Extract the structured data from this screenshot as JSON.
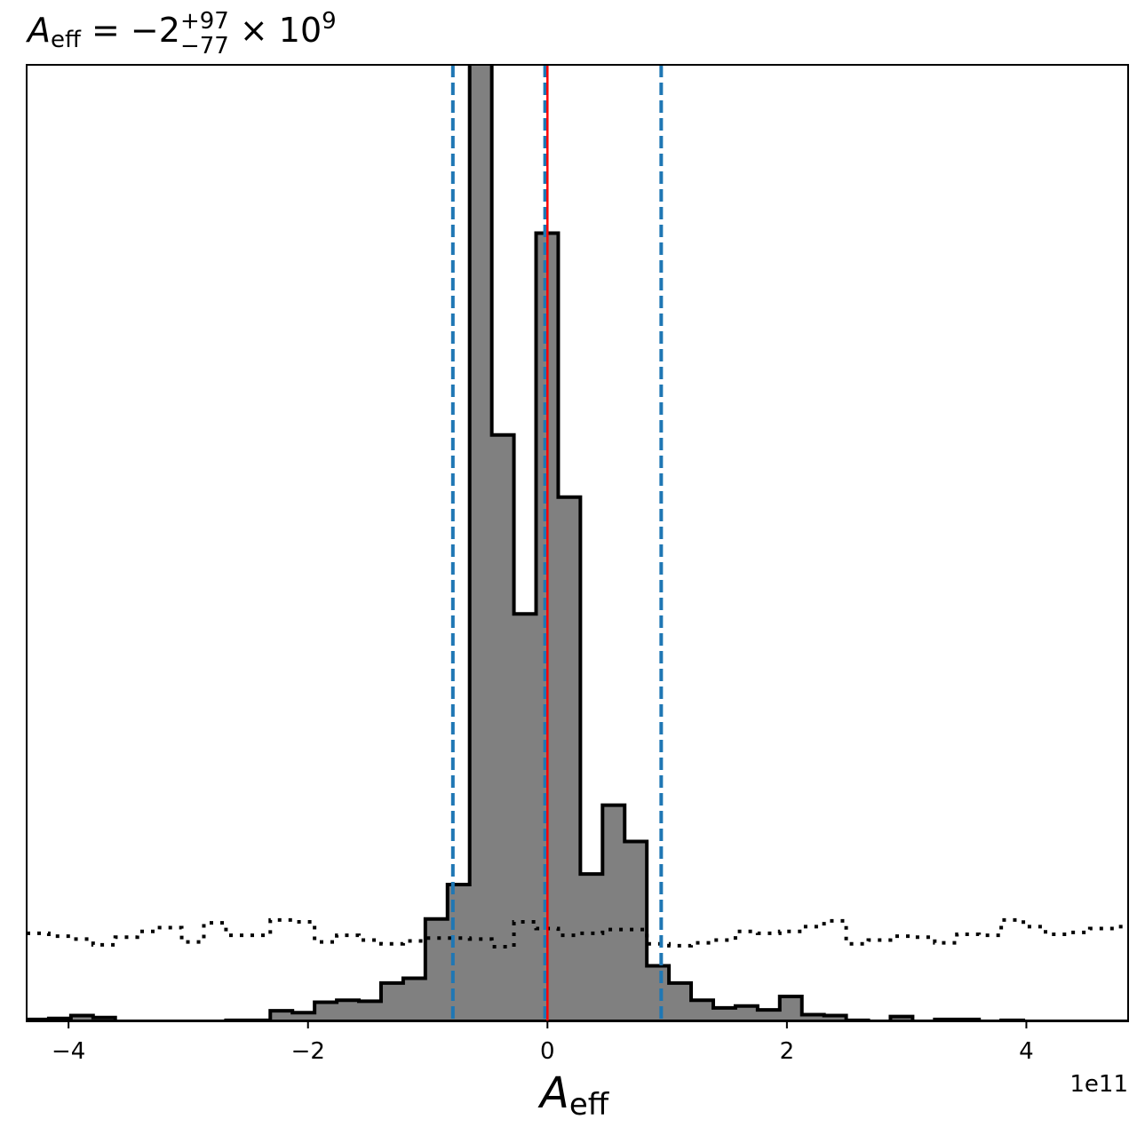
{
  "chart_data": {
    "type": "histogram",
    "title": {
      "symbol": "A",
      "subscript": "eff",
      "equals": " = −2",
      "sup": "+97",
      "sub": "−77",
      "times": " × 10",
      "exponent": "9"
    },
    "xlabel": {
      "symbol": "A",
      "subscript": "eff"
    },
    "ylabel": "",
    "xlim": [
      -4.35,
      4.85
    ],
    "ylim": [
      0,
      100
    ],
    "offset_text": "1e11",
    "x_ticks": [
      -4,
      -2,
      0,
      2,
      4
    ],
    "x_tick_labels": [
      "−4",
      "−2",
      "0",
      "2",
      "4"
    ],
    "histogram": {
      "color": "#808080",
      "edge_color": "#000000",
      "bin_start": -4.35,
      "bin_width": 0.185,
      "values": [
        0.2,
        0.3,
        0.6,
        0.4,
        0,
        0,
        0,
        0,
        0,
        0.1,
        0.1,
        1.1,
        0.9,
        2,
        2.2,
        2.1,
        4,
        4.5,
        10.7,
        14.3,
        107,
        61.3,
        42.6,
        82.4,
        54.8,
        15.4,
        22.6,
        18.8,
        5.8,
        4,
        2.2,
        1.4,
        1.6,
        1.2,
        2.6,
        0.7,
        0.6,
        0.1,
        0,
        0.5,
        0,
        0.2,
        0.2,
        0,
        0.1,
        0,
        0,
        0,
        0,
        0
      ]
    },
    "prior": {
      "style": "dotted",
      "bin_start": -4.35,
      "bin_width": 0.185,
      "values": [
        9.2,
        8.9,
        8.6,
        8,
        8.8,
        9.4,
        9.8,
        8.3,
        10.3,
        9,
        9,
        10.6,
        10.4,
        8.3,
        9,
        8.5,
        8.1,
        8.4,
        8.7,
        8.7,
        8.6,
        7.8,
        10.4,
        9.7,
        9,
        9.2,
        9.6,
        9.6,
        8.1,
        7.9,
        8.2,
        8.5,
        9.4,
        9.2,
        9.4,
        9.9,
        10.5,
        8.1,
        8.5,
        8.9,
        8.8,
        8.2,
        9.1,
        9,
        10.6,
        9.9,
        9.1,
        9.3,
        9.7,
        9.9
      ]
    },
    "vlines": [
      {
        "x": -0.79,
        "color": "#1f77b4",
        "style": "dashed",
        "role": "lower"
      },
      {
        "x": -0.02,
        "color": "#1f77b4",
        "style": "dashed",
        "role": "median"
      },
      {
        "x": 0.95,
        "color": "#1f77b4",
        "style": "dashed",
        "role": "upper"
      },
      {
        "x": 0.0,
        "color": "#ff0000",
        "style": "solid",
        "role": "reference"
      }
    ],
    "grid": false,
    "legend": "none"
  }
}
